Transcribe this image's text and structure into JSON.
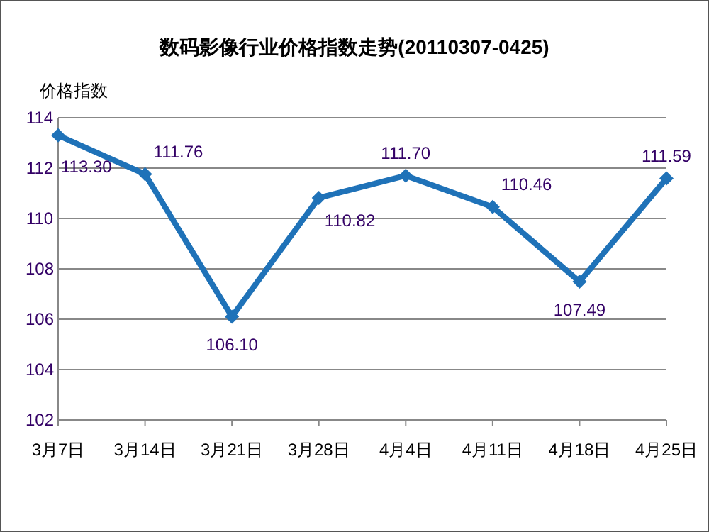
{
  "chart_data": {
    "type": "line",
    "title": "数码影像行业价格指数走势(20110307-0425)",
    "ylabel": "价格指数",
    "categories": [
      "3月7日",
      "3月14日",
      "3月21日",
      "3月28日",
      "4月4日",
      "4月11日",
      "4月18日",
      "4月25日"
    ],
    "series": [
      {
        "color": "#1f72b8",
        "values": [
          113.3,
          111.76,
          106.1,
          110.82,
          111.7,
          110.46,
          107.49,
          111.59
        ],
        "value_labels": [
          "113.30",
          "111.76",
          "106.10",
          "110.82",
          "111.70",
          "110.46",
          "107.49",
          "111.59"
        ]
      }
    ],
    "ylim": [
      102,
      114
    ],
    "yticks": [
      102,
      104,
      106,
      108,
      110,
      112,
      114
    ],
    "grid": "y",
    "marker": "diamond",
    "line_style": "solid"
  }
}
